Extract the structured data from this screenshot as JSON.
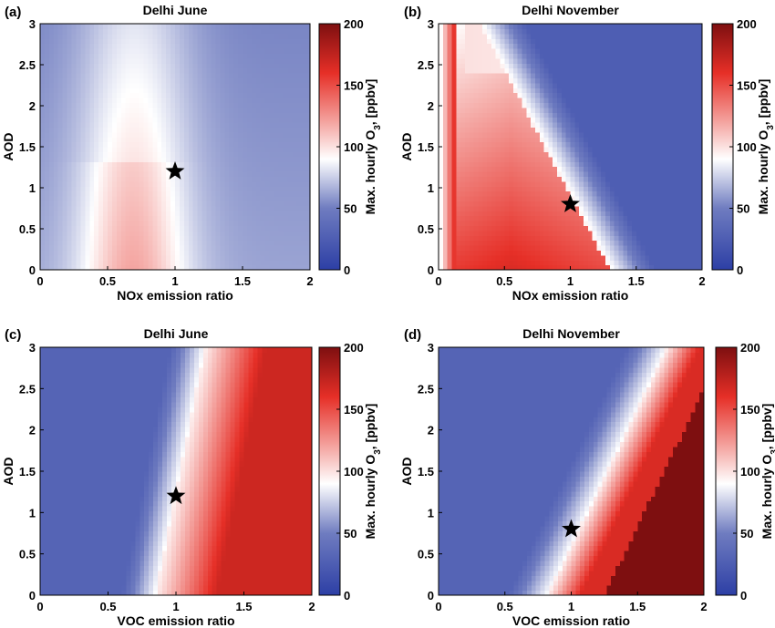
{
  "colorbar": {
    "label_main": "Max. hourly O",
    "label_sub": "3",
    "label_unit": ", [ppbv]",
    "range": [
      0,
      200
    ],
    "ticks": [
      "0",
      "50",
      "100",
      "150",
      "200"
    ],
    "colors": {
      "low": "#2d3fa5",
      "mid": "#ffffff",
      "high": "#7e0f10",
      "red": "#e83329"
    }
  },
  "chart_data": [
    {
      "type": "heatmap",
      "panel": "(a)",
      "title": "Delhi June",
      "xlabel": "NOx emission ratio",
      "ylabel": "AOD",
      "xlim": [
        0,
        2
      ],
      "ylim": [
        0,
        3
      ],
      "xticks": [
        "0",
        "0.5",
        "1",
        "1.5",
        "2"
      ],
      "yticks": [
        "0",
        "0.5",
        "1",
        "1.5",
        "2",
        "2.5",
        "3"
      ],
      "star": {
        "x": 1.0,
        "y": 1.2
      },
      "pattern": "nox_june"
    },
    {
      "type": "heatmap",
      "panel": "(b)",
      "title": "Delhi November",
      "xlabel": "NOx emission ratio",
      "ylabel": "AOD",
      "xlim": [
        0,
        2
      ],
      "ylim": [
        0,
        3
      ],
      "xticks": [
        "0",
        "0.5",
        "1",
        "1.5",
        "2"
      ],
      "yticks": [
        "0",
        "0.5",
        "1",
        "1.5",
        "2",
        "2.5",
        "3"
      ],
      "star": {
        "x": 1.0,
        "y": 0.8
      },
      "pattern": "nox_nov"
    },
    {
      "type": "heatmap",
      "panel": "(c)",
      "title": "Delhi June",
      "xlabel": "VOC emission ratio",
      "ylabel": "AOD",
      "xlim": [
        0,
        2
      ],
      "ylim": [
        0,
        3
      ],
      "xticks": [
        "0",
        "0.5",
        "1",
        "1.5",
        "2"
      ],
      "yticks": [
        "0",
        "0.5",
        "1",
        "1.5",
        "2",
        "2.5",
        "3"
      ],
      "star": {
        "x": 1.0,
        "y": 1.2
      },
      "pattern": "voc_june"
    },
    {
      "type": "heatmap",
      "panel": "(d)",
      "title": "Delhi November",
      "xlabel": "VOC emission ratio",
      "ylabel": "AOD",
      "xlim": [
        0,
        2
      ],
      "ylim": [
        0,
        3
      ],
      "xticks": [
        "0",
        "0.5",
        "1",
        "1.5",
        "2"
      ],
      "yticks": [
        "0",
        "0.5",
        "1",
        "1.5",
        "2",
        "2.5",
        "3"
      ],
      "star": {
        "x": 1.0,
        "y": 0.8
      },
      "pattern": "voc_nov"
    }
  ]
}
